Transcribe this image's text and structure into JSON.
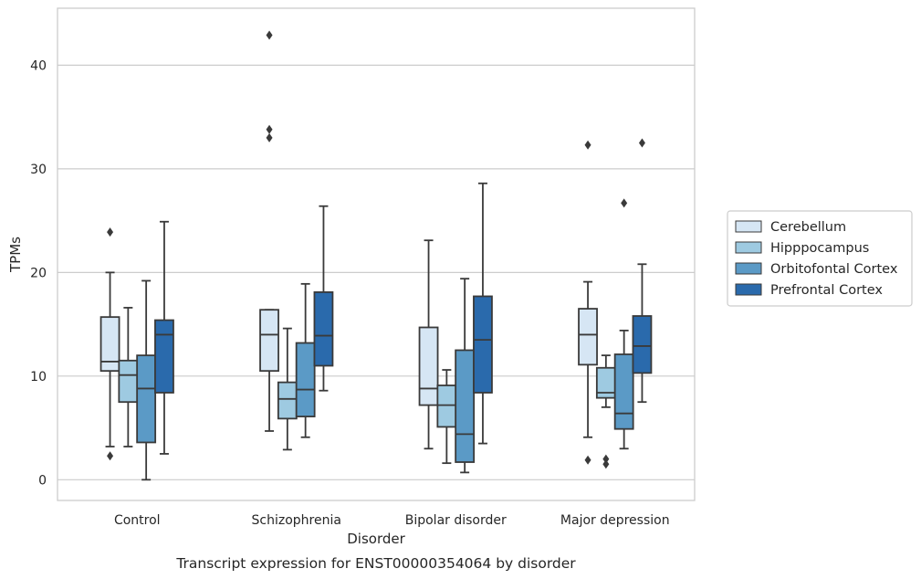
{
  "chart_data": {
    "type": "box",
    "title": "",
    "caption": "Transcript expression for ENST00000354064 by disorder",
    "xlabel": "Disorder",
    "ylabel": "TPMs",
    "ylim": [
      -2,
      45.5
    ],
    "yticks": [
      0,
      10,
      20,
      30,
      40
    ],
    "grid": "horizontal",
    "legend_position": "right",
    "categories": [
      "Control",
      "Schizophrenia",
      "Bipolar disorder",
      "Major depression"
    ],
    "series": [
      {
        "name": "Cerebellum",
        "color": "#d6e6f4",
        "boxes": [
          {
            "whisker_low": 3.2,
            "q1": 10.5,
            "median": 11.4,
            "q3": 15.7,
            "whisker_high": 20.0,
            "outliers": [
              23.9,
              2.3
            ]
          },
          {
            "whisker_low": 4.7,
            "q1": 10.5,
            "median": 14.0,
            "q3": 16.4,
            "whisker_high": 16.4,
            "outliers": [
              42.9,
              33.8,
              33.0
            ]
          },
          {
            "whisker_low": 3.0,
            "q1": 7.2,
            "median": 8.8,
            "q3": 14.7,
            "whisker_high": 23.1,
            "outliers": []
          },
          {
            "whisker_low": 4.1,
            "q1": 11.1,
            "median": 14.0,
            "q3": 16.5,
            "whisker_high": 19.1,
            "outliers": [
              32.3,
              1.9
            ]
          }
        ]
      },
      {
        "name": "Hipppocampus",
        "color": "#9ecae1",
        "boxes": [
          {
            "whisker_low": 3.2,
            "q1": 7.5,
            "median": 10.1,
            "q3": 11.5,
            "whisker_high": 16.6,
            "outliers": []
          },
          {
            "whisker_low": 2.9,
            "q1": 5.9,
            "median": 7.8,
            "q3": 9.4,
            "whisker_high": 14.6,
            "outliers": []
          },
          {
            "whisker_low": 1.6,
            "q1": 5.1,
            "median": 7.2,
            "q3": 9.1,
            "whisker_high": 10.6,
            "outliers": []
          },
          {
            "whisker_low": 7.0,
            "q1": 7.9,
            "median": 8.4,
            "q3": 10.8,
            "whisker_high": 12.0,
            "outliers": [
              2.0,
              1.5
            ]
          }
        ]
      },
      {
        "name": "Orbitofontal Cortex",
        "color": "#5b9ac6",
        "boxes": [
          {
            "whisker_low": 0.0,
            "q1": 3.6,
            "median": 8.8,
            "q3": 12.0,
            "whisker_high": 19.2,
            "outliers": []
          },
          {
            "whisker_low": 4.1,
            "q1": 6.1,
            "median": 8.7,
            "q3": 13.2,
            "whisker_high": 18.9,
            "outliers": []
          },
          {
            "whisker_low": 0.7,
            "q1": 1.7,
            "median": 4.4,
            "q3": 12.5,
            "whisker_high": 19.4,
            "outliers": []
          },
          {
            "whisker_low": 3.0,
            "q1": 4.9,
            "median": 6.4,
            "q3": 12.1,
            "whisker_high": 14.4,
            "outliers": [
              26.7
            ]
          }
        ]
      },
      {
        "name": "Prefrontal Cortex",
        "color": "#2a6aac",
        "boxes": [
          {
            "whisker_low": 2.5,
            "q1": 8.4,
            "median": 14.0,
            "q3": 15.4,
            "whisker_high": 24.9,
            "outliers": []
          },
          {
            "whisker_low": 8.6,
            "q1": 11.0,
            "median": 13.9,
            "q3": 18.1,
            "whisker_high": 26.4,
            "outliers": []
          },
          {
            "whisker_low": 3.5,
            "q1": 8.4,
            "median": 13.5,
            "q3": 17.7,
            "whisker_high": 28.6,
            "outliers": []
          },
          {
            "whisker_low": 7.5,
            "q1": 10.3,
            "median": 12.9,
            "q3": 15.8,
            "whisker_high": 20.8,
            "outliers": [
              32.5
            ]
          }
        ]
      }
    ]
  }
}
